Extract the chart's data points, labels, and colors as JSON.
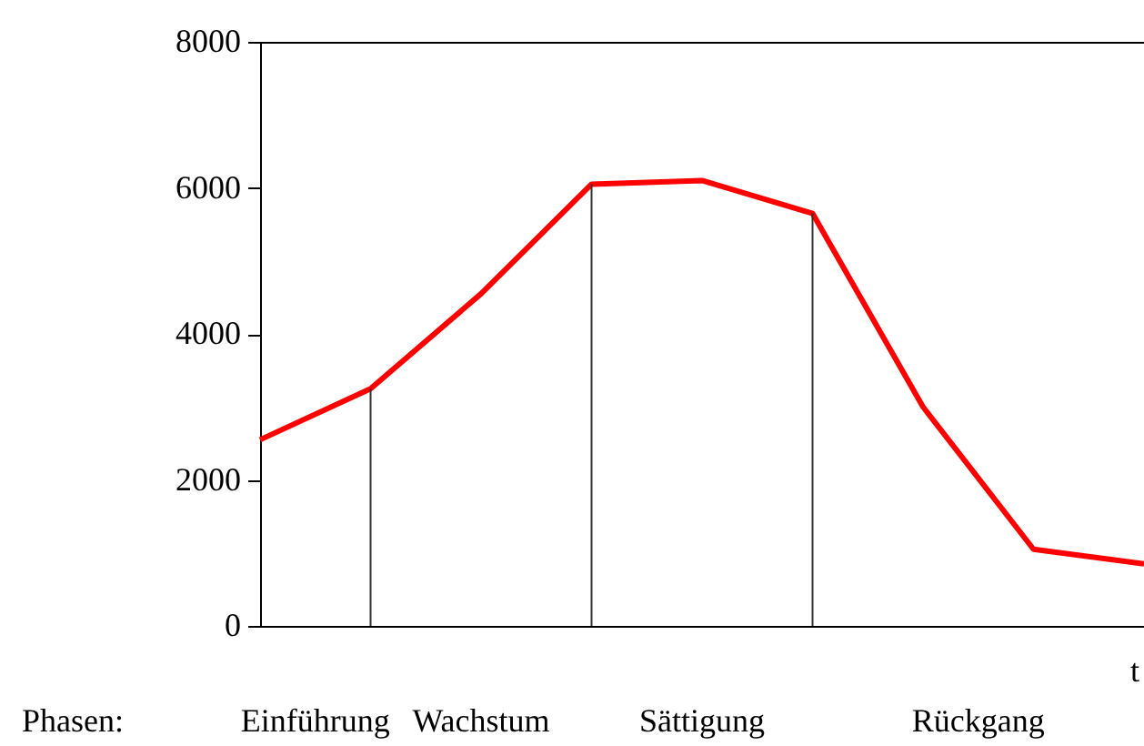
{
  "chart_data": {
    "type": "line",
    "xlabel": "t",
    "categories": [
      null,
      null,
      null,
      null,
      null,
      null,
      null,
      null,
      null
    ],
    "series": [
      {
        "color": "#ff0000",
        "values": [
          2550,
          3250,
          4550,
          6050,
          6100,
          5650,
          3000,
          1050,
          850
        ]
      }
    ],
    "ylim": [
      0,
      8000
    ],
    "yticks": [
      0,
      2000,
      4000,
      6000,
      8000
    ],
    "marker": "none",
    "line_style": "solid",
    "tick_labels": "y",
    "annotations": [
      "Phasen:",
      "Einführung",
      "Wachstum",
      "Sättigung",
      "Rückgang"
    ]
  }
}
